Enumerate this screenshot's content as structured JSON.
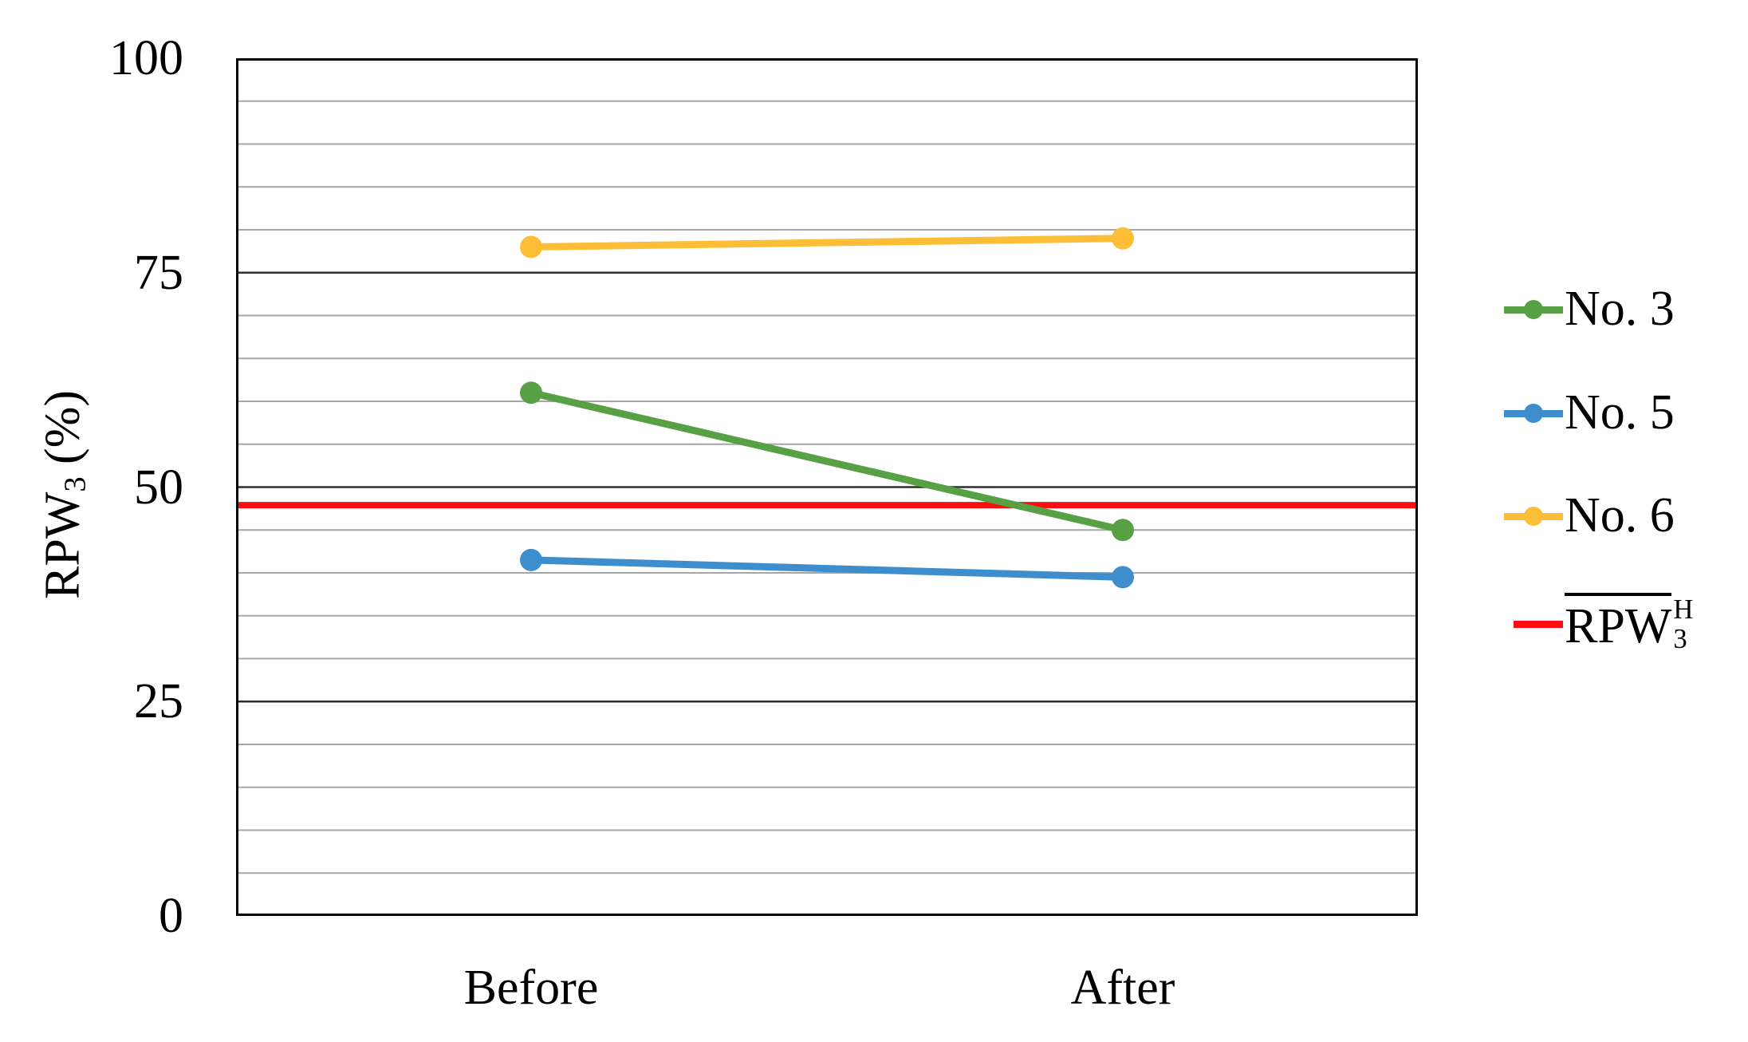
{
  "figure": {
    "background": "#ffffff",
    "text_color": "#000000"
  },
  "chart_data": {
    "type": "line",
    "title": "",
    "categories": [
      "Before",
      "After"
    ],
    "series": [
      {
        "name": "No. 3",
        "color": "#57A144",
        "values": [
          61,
          45
        ]
      },
      {
        "name": "No. 5",
        "color": "#3E8ECD",
        "values": [
          41.5,
          39.5
        ]
      },
      {
        "name": "No. 6",
        "color": "#FCBE37",
        "values": [
          78,
          79
        ]
      }
    ],
    "reference_line": {
      "value": 47.9,
      "color": "#FB0D12",
      "label_base": "RPW",
      "label_sub": "3",
      "label_sup": "H",
      "overline": true
    },
    "y_axis": {
      "title_base": "RPW",
      "title_sub": "3",
      "title_suffix": " (%)",
      "min": 0,
      "max": 100,
      "ticks": [
        100,
        75,
        50,
        25,
        0
      ],
      "minor_unit": 5,
      "major_unit": 25
    },
    "grid": {
      "minor_color": "#A6A6A6",
      "major_color": "#2E2E2E",
      "border_color": "#000000"
    },
    "legend_position": "right",
    "marker": "circle"
  }
}
